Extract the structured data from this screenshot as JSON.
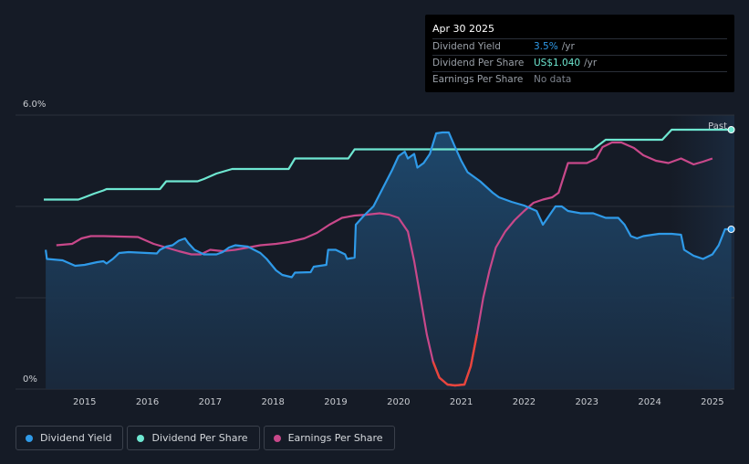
{
  "tooltip": {
    "date": "Apr 30 2025",
    "rows": [
      {
        "label": "Dividend Yield",
        "value": "3.5%",
        "unit": "/yr",
        "color": "#2f9ae8"
      },
      {
        "label": "Dividend Per Share",
        "value": "US$1.040",
        "unit": "/yr",
        "color": "#6ee7d1"
      },
      {
        "label": "Earnings Per Share",
        "value": "No data",
        "unit": "",
        "color": "#7c828c"
      }
    ]
  },
  "legend": [
    {
      "label": "Dividend Yield",
      "color": "#2f9ae8"
    },
    {
      "label": "Dividend Per Share",
      "color": "#6ee7d1"
    },
    {
      "label": "Earnings Per Share",
      "color": "#c8488a"
    }
  ],
  "chart_data": {
    "type": "line",
    "y_tick_labels": [
      "6.0%",
      "0%"
    ],
    "ylim": [
      0,
      6.0
    ],
    "xlim": [
      2014.35,
      2025.35
    ],
    "x_tick_labels": [
      "2015",
      "2016",
      "2017",
      "2018",
      "2019",
      "2020",
      "2021",
      "2022",
      "2023",
      "2024",
      "2025"
    ],
    "x_ticks": [
      2015,
      2016,
      2017,
      2018,
      2019,
      2020,
      2021,
      2022,
      2023,
      2024,
      2025
    ],
    "past_label": "Past",
    "forecast_start": 2024.33,
    "grid": true,
    "series": [
      {
        "name": "Dividend Yield",
        "color": "#2f9ae8",
        "values": [
          [
            2014.38,
            3.05
          ],
          [
            2014.4,
            2.85
          ],
          [
            2014.65,
            2.82
          ],
          [
            2014.85,
            2.7
          ],
          [
            2015.0,
            2.72
          ],
          [
            2015.2,
            2.78
          ],
          [
            2015.3,
            2.8
          ],
          [
            2015.35,
            2.75
          ],
          [
            2015.45,
            2.85
          ],
          [
            2015.55,
            2.98
          ],
          [
            2015.7,
            3.0
          ],
          [
            2016.0,
            2.98
          ],
          [
            2016.15,
            2.97
          ],
          [
            2016.2,
            3.05
          ],
          [
            2016.3,
            3.12
          ],
          [
            2016.4,
            3.15
          ],
          [
            2016.5,
            3.25
          ],
          [
            2016.6,
            3.3
          ],
          [
            2016.65,
            3.2
          ],
          [
            2016.75,
            3.05
          ],
          [
            2016.9,
            2.95
          ],
          [
            2017.1,
            2.95
          ],
          [
            2017.2,
            3.0
          ],
          [
            2017.3,
            3.1
          ],
          [
            2017.4,
            3.15
          ],
          [
            2017.6,
            3.12
          ],
          [
            2017.8,
            2.98
          ],
          [
            2017.9,
            2.85
          ],
          [
            2018.05,
            2.6
          ],
          [
            2018.15,
            2.5
          ],
          [
            2018.3,
            2.45
          ],
          [
            2018.35,
            2.55
          ],
          [
            2018.6,
            2.56
          ],
          [
            2018.65,
            2.68
          ],
          [
            2018.85,
            2.72
          ],
          [
            2018.88,
            3.05
          ],
          [
            2019.0,
            3.05
          ],
          [
            2019.15,
            2.95
          ],
          [
            2019.18,
            2.85
          ],
          [
            2019.3,
            2.88
          ],
          [
            2019.32,
            3.6
          ],
          [
            2019.45,
            3.8
          ],
          [
            2019.6,
            4.0
          ],
          [
            2019.75,
            4.4
          ],
          [
            2019.9,
            4.8
          ],
          [
            2020.0,
            5.1
          ],
          [
            2020.1,
            5.2
          ],
          [
            2020.15,
            5.05
          ],
          [
            2020.25,
            5.15
          ],
          [
            2020.3,
            4.85
          ],
          [
            2020.4,
            4.95
          ],
          [
            2020.5,
            5.15
          ],
          [
            2020.6,
            5.6
          ],
          [
            2020.7,
            5.62
          ],
          [
            2020.8,
            5.62
          ],
          [
            2020.9,
            5.3
          ],
          [
            2021.0,
            5.0
          ],
          [
            2021.1,
            4.75
          ],
          [
            2021.3,
            4.55
          ],
          [
            2021.5,
            4.3
          ],
          [
            2021.6,
            4.2
          ],
          [
            2021.8,
            4.1
          ],
          [
            2022.0,
            4.02
          ],
          [
            2022.2,
            3.9
          ],
          [
            2022.3,
            3.6
          ],
          [
            2022.4,
            3.8
          ],
          [
            2022.5,
            4.0
          ],
          [
            2022.6,
            4.0
          ],
          [
            2022.7,
            3.9
          ],
          [
            2022.9,
            3.85
          ],
          [
            2023.1,
            3.85
          ],
          [
            2023.2,
            3.8
          ],
          [
            2023.3,
            3.75
          ],
          [
            2023.5,
            3.75
          ],
          [
            2023.6,
            3.6
          ],
          [
            2023.7,
            3.35
          ],
          [
            2023.8,
            3.3
          ],
          [
            2023.9,
            3.35
          ],
          [
            2024.05,
            3.38
          ],
          [
            2024.15,
            3.4
          ],
          [
            2024.35,
            3.4
          ],
          [
            2024.5,
            3.38
          ],
          [
            2024.55,
            3.05
          ],
          [
            2024.7,
            2.92
          ],
          [
            2024.85,
            2.85
          ],
          [
            2025.0,
            2.95
          ],
          [
            2025.1,
            3.15
          ],
          [
            2025.2,
            3.5
          ],
          [
            2025.3,
            3.5
          ]
        ]
      },
      {
        "name": "Dividend Per Share",
        "color": "#6ee7d1",
        "values": [
          [
            2014.35,
            4.15
          ],
          [
            2014.9,
            4.15
          ],
          [
            2015.0,
            4.2
          ],
          [
            2015.15,
            4.28
          ],
          [
            2015.3,
            4.35
          ],
          [
            2015.35,
            4.38
          ],
          [
            2016.2,
            4.38
          ],
          [
            2016.3,
            4.55
          ],
          [
            2016.8,
            4.55
          ],
          [
            2016.9,
            4.6
          ],
          [
            2017.1,
            4.72
          ],
          [
            2017.3,
            4.8
          ],
          [
            2017.35,
            4.82
          ],
          [
            2018.25,
            4.82
          ],
          [
            2018.35,
            5.05
          ],
          [
            2019.2,
            5.05
          ],
          [
            2019.3,
            5.25
          ],
          [
            2023.1,
            5.25
          ],
          [
            2023.3,
            5.46
          ],
          [
            2024.2,
            5.46
          ],
          [
            2024.35,
            5.68
          ],
          [
            2025.3,
            5.68
          ]
        ]
      },
      {
        "name": "Earnings Per Share",
        "color": "#c8488a",
        "low_color": "#e8453c",
        "values": [
          [
            2014.55,
            3.15
          ],
          [
            2014.8,
            3.18
          ],
          [
            2014.95,
            3.3
          ],
          [
            2015.1,
            3.35
          ],
          [
            2015.3,
            3.35
          ],
          [
            2015.85,
            3.33
          ],
          [
            2016.1,
            3.18
          ],
          [
            2016.3,
            3.1
          ],
          [
            2016.5,
            3.02
          ],
          [
            2016.7,
            2.95
          ],
          [
            2016.85,
            2.95
          ],
          [
            2017.0,
            3.05
          ],
          [
            2017.2,
            3.02
          ],
          [
            2017.4,
            3.05
          ],
          [
            2017.6,
            3.1
          ],
          [
            2017.8,
            3.15
          ],
          [
            2018.05,
            3.18
          ],
          [
            2018.25,
            3.22
          ],
          [
            2018.5,
            3.3
          ],
          [
            2018.7,
            3.42
          ],
          [
            2018.9,
            3.6
          ],
          [
            2019.1,
            3.75
          ],
          [
            2019.3,
            3.8
          ],
          [
            2019.5,
            3.82
          ],
          [
            2019.7,
            3.85
          ],
          [
            2019.85,
            3.82
          ],
          [
            2020.0,
            3.75
          ],
          [
            2020.15,
            3.45
          ],
          [
            2020.25,
            2.8
          ],
          [
            2020.35,
            2.0
          ],
          [
            2020.45,
            1.2
          ],
          [
            2020.55,
            0.6
          ],
          [
            2020.65,
            0.25
          ],
          [
            2020.78,
            0.1
          ],
          [
            2020.9,
            0.08
          ],
          [
            2021.05,
            0.1
          ],
          [
            2021.15,
            0.5
          ],
          [
            2021.25,
            1.2
          ],
          [
            2021.35,
            2.0
          ],
          [
            2021.45,
            2.6
          ],
          [
            2021.55,
            3.1
          ],
          [
            2021.7,
            3.45
          ],
          [
            2021.85,
            3.7
          ],
          [
            2022.0,
            3.9
          ],
          [
            2022.15,
            4.08
          ],
          [
            2022.3,
            4.15
          ],
          [
            2022.45,
            4.2
          ],
          [
            2022.55,
            4.3
          ],
          [
            2022.7,
            4.95
          ],
          [
            2022.85,
            4.95
          ],
          [
            2023.0,
            4.95
          ],
          [
            2023.15,
            5.05
          ],
          [
            2023.25,
            5.3
          ],
          [
            2023.4,
            5.4
          ],
          [
            2023.55,
            5.4
          ],
          [
            2023.75,
            5.28
          ],
          [
            2023.9,
            5.12
          ],
          [
            2024.1,
            5.0
          ],
          [
            2024.3,
            4.95
          ],
          [
            2024.5,
            5.05
          ],
          [
            2024.7,
            4.92
          ],
          [
            2024.85,
            4.98
          ],
          [
            2025.0,
            5.05
          ]
        ]
      }
    ]
  }
}
